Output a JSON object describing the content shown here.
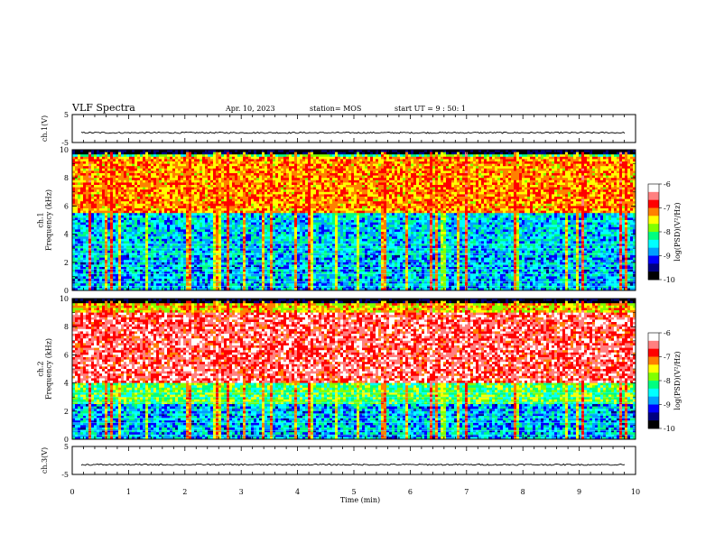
{
  "header": {
    "title": "VLF Spectra",
    "date": "Apr. 10, 2023",
    "station": "station= MOS",
    "start": "start UT =  9 : 50: 1"
  },
  "chart_data": {
    "type": "heatmap",
    "xlabel": "Time (min)",
    "xlim": [
      0,
      10
    ],
    "x_ticks": [
      "0",
      "1",
      "2",
      "3",
      "4",
      "5",
      "6",
      "7",
      "8",
      "9",
      "10"
    ],
    "panels": [
      {
        "name": "ch1-voltage",
        "type": "line",
        "ylabel": "ch.1(V)",
        "ylim": [
          -5,
          5
        ],
        "y_ticks": [
          "5",
          "-5"
        ],
        "baseline_value": -1.5
      },
      {
        "name": "ch1-spectrogram",
        "type": "heatmap",
        "ylabel": "ch.1\nFrequency (kHz)",
        "ylabel_lines": [
          "ch.1",
          "Frequency (kHz)"
        ],
        "ylim": [
          0,
          10
        ],
        "y_ticks": [
          "0",
          "2",
          "4",
          "6",
          "8",
          "10"
        ],
        "colorbar": {
          "label": "log(PSD)(V²/Hz)",
          "range": [
            -10,
            -6
          ],
          "ticks": [
            "-6",
            "-7",
            "-8",
            "-9",
            "-10"
          ]
        },
        "dominant_band_khz": [
          5.5,
          9.5
        ],
        "dominant_level": -7.2
      },
      {
        "name": "ch2-spectrogram",
        "type": "heatmap",
        "ylabel": "ch.2\nFrequency (kHz)",
        "ylabel_lines": [
          "ch.2",
          "Frequency (kHz)"
        ],
        "ylim": [
          0,
          10
        ],
        "y_ticks": [
          "0",
          "2",
          "4",
          "6",
          "8",
          "10"
        ],
        "colorbar": {
          "label": "log(PSD)(V²/Hz)",
          "range": [
            -10,
            -6
          ],
          "ticks": [
            "-6",
            "-7",
            "-8",
            "-9",
            "-10"
          ]
        },
        "dominant_band_khz": [
          4.0,
          9.0
        ],
        "dominant_level": -6.6
      },
      {
        "name": "ch3-voltage",
        "type": "line",
        "ylabel": "ch.3(V)",
        "ylim": [
          -5,
          5
        ],
        "y_ticks": [
          "5",
          "-5"
        ],
        "baseline_value": -1.5
      }
    ],
    "colormap": [
      "#000000",
      "#000080",
      "#0000ff",
      "#00a0ff",
      "#00ffff",
      "#00ff80",
      "#80ff00",
      "#ffff00",
      "#ff8000",
      "#ff0000",
      "#ff8080",
      "#ffffff"
    ]
  }
}
